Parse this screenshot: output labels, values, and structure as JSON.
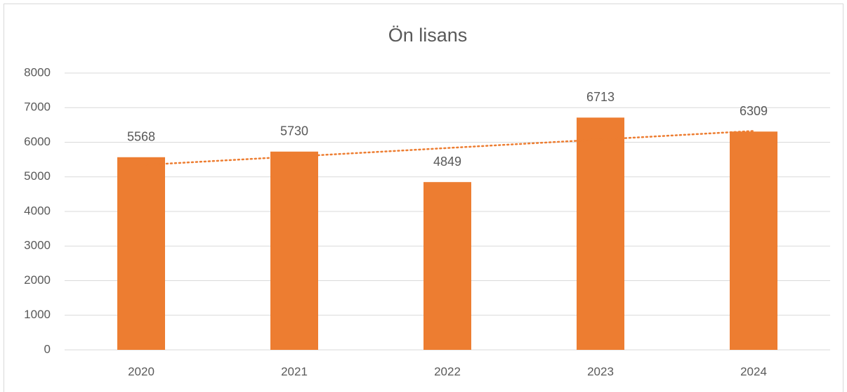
{
  "chart_data": {
    "type": "bar",
    "title": "Ön lisans",
    "categories": [
      "2020",
      "2021",
      "2022",
      "2023",
      "2024"
    ],
    "values": [
      5568,
      5730,
      4849,
      6713,
      6309
    ],
    "color": "#ed7d31",
    "ylim": [
      0,
      8000
    ],
    "yticks": [
      0,
      1000,
      2000,
      3000,
      4000,
      5000,
      6000,
      7000,
      8000
    ],
    "grid": true,
    "trendline": "linear"
  }
}
